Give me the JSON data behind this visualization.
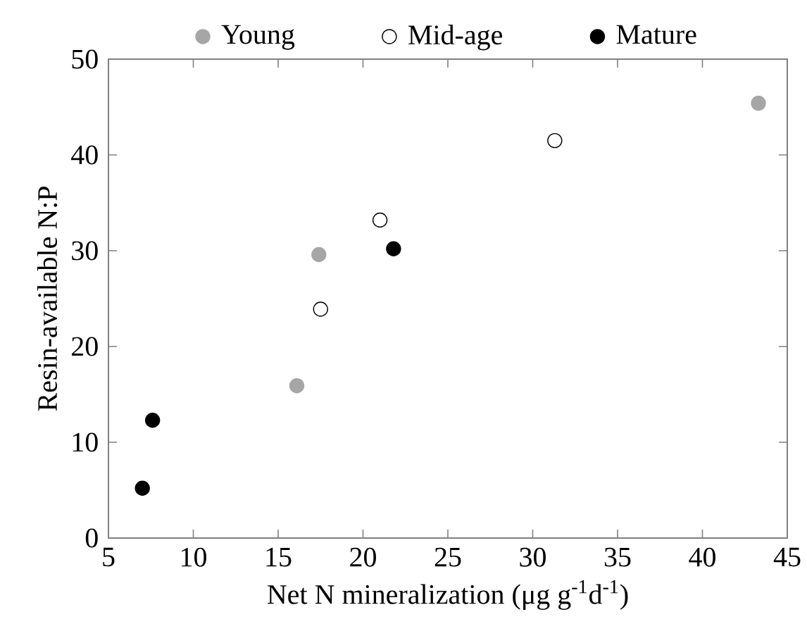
{
  "chart_data": {
    "type": "scatter",
    "xlabel": "Net N mineralization (μg g$^{-1}$d$^{-1}$)",
    "ylabel": "Resin-available N:P",
    "xlim": [
      5,
      45
    ],
    "xticks": [
      5,
      10,
      15,
      20,
      25,
      30,
      35,
      40,
      45
    ],
    "ylim": [
      0,
      50
    ],
    "yticks": [
      0,
      10,
      20,
      30,
      40,
      50
    ],
    "marker": "circle",
    "legend": "top",
    "grid": false,
    "series": [
      {
        "name": "Young",
        "color": "#a6a6a6",
        "x": [
          16.1,
          17.4,
          43.3
        ],
        "values": [
          15.9,
          29.6,
          45.4
        ]
      },
      {
        "name": "Mid-age",
        "color": "#ffffff",
        "x": [
          17.5,
          21.0,
          31.3
        ],
        "values": [
          23.9,
          33.2,
          41.5
        ]
      },
      {
        "name": "Mature",
        "color": "#000000",
        "x": [
          7.0,
          7.6,
          21.8
        ],
        "values": [
          5.2,
          12.3,
          30.2
        ]
      }
    ]
  }
}
